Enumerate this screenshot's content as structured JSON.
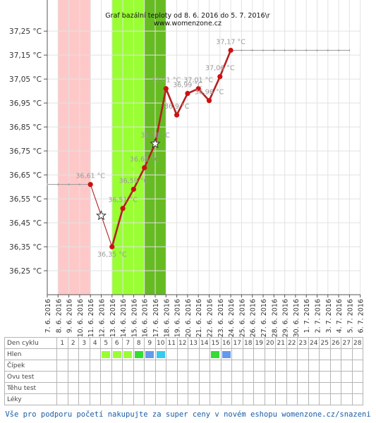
{
  "chart_data": {
    "type": "line",
    "title": "Graf bazální teploty od 8. 6. 2016 do 5. 7. 2016\\r",
    "subtitle": "www.womenzone.cz",
    "ylim": [
      36.15,
      37.38
    ],
    "y_ticks": [
      36.25,
      36.35,
      36.45,
      36.55,
      36.65,
      36.75,
      36.85,
      36.95,
      37.05,
      37.15,
      37.25
    ],
    "y_tick_labels": [
      "36,25 °C",
      "36,35 °C",
      "36,45 °C",
      "36,55 °C",
      "36,65 °C",
      "36,75 °C",
      "36,85 °C",
      "36,95 °C",
      "37,05 °C",
      "37,15 °C",
      "37,25 °C"
    ],
    "x_tick_labels": [
      "7. 6. 2016",
      "8. 6. 2016",
      "9. 6. 2016",
      "10. 6. 2016",
      "11. 6. 2016",
      "12. 6. 2016",
      "13. 6. 2016",
      "14. 6. 2016",
      "15. 6. 2016",
      "16. 6. 2016",
      "17. 6. 2016",
      "18. 6. 2016",
      "19. 6. 2016",
      "20. 6. 2016",
      "21. 6. 2016",
      "22. 6. 2016",
      "23. 6. 2016",
      "24. 6. 2016",
      "25. 6. 2016",
      "26. 6. 2016",
      "27. 6. 2016",
      "28. 6. 2016",
      "29. 6. 2016",
      "30. 6. 2016",
      "1. 7. 2016",
      "2. 7. 2016",
      "3. 7. 2016",
      "4. 7. 2016",
      "5. 7. 2016",
      "6. 7. 2016"
    ],
    "grid": true,
    "bands": [
      {
        "from_day": 1,
        "to_day": 4,
        "color": "#ffc8c8"
      },
      {
        "from_day": 6,
        "to_day": 9,
        "color": "#99ff33"
      },
      {
        "from_day": 9,
        "to_day": 11,
        "color": "#66bb22"
      }
    ],
    "colors": {
      "line": "#b22222",
      "marker": "#cc1111",
      "guide": "#999999",
      "label": "#999999"
    },
    "segments": [
      {
        "style": "thin",
        "days": [
          4,
          5,
          6
        ],
        "values": [
          36.61,
          36.48,
          36.35
        ]
      },
      {
        "style": "thick",
        "days": [
          6,
          7,
          8,
          9,
          10,
          11,
          12,
          13,
          14,
          15,
          16,
          17
        ],
        "values": [
          36.35,
          36.51,
          36.59,
          36.68,
          36.78,
          37.01,
          36.9,
          36.99,
          37.01,
          36.96,
          37.06,
          37.17
        ]
      }
    ],
    "points": [
      {
        "day": 4,
        "value": 36.61,
        "marker": "dot",
        "label": "36,61 °C"
      },
      {
        "day": 5,
        "value": 36.48,
        "marker": "star",
        "label": ""
      },
      {
        "day": 6,
        "value": 36.35,
        "marker": "dot",
        "label": "36,35 °C"
      },
      {
        "day": 7,
        "value": 36.51,
        "marker": "dot",
        "label": "36,51 °C"
      },
      {
        "day": 8,
        "value": 36.59,
        "marker": "dot",
        "label": "36,59 °C"
      },
      {
        "day": 9,
        "value": 36.68,
        "marker": "dot",
        "label": "36,68 °C"
      },
      {
        "day": 10,
        "value": 36.78,
        "marker": "star",
        "label": "36,78 °C"
      },
      {
        "day": 11,
        "value": 37.01,
        "marker": "dot",
        "label": "37,01 °C"
      },
      {
        "day": 12,
        "value": 36.9,
        "marker": "dot",
        "label": "36,9 °C"
      },
      {
        "day": 13,
        "value": 36.99,
        "marker": "dot",
        "label": "36,99 °C"
      },
      {
        "day": 14,
        "value": 37.01,
        "marker": "dot",
        "label": "37,01 °C"
      },
      {
        "day": 15,
        "value": 36.96,
        "marker": "dot",
        "label": "36,96 °C"
      },
      {
        "day": 16,
        "value": 37.06,
        "marker": "dot",
        "label": "37,06 °C"
      },
      {
        "day": 17,
        "value": 37.17,
        "marker": "dot",
        "label": "37,17 °C"
      }
    ],
    "guide_lines": [
      {
        "from_day": 0,
        "to_day": 4,
        "value": 36.61
      },
      {
        "from_day": 17,
        "to_day": 28,
        "value": 37.17
      }
    ]
  },
  "table": {
    "rows": [
      {
        "label": "Den cyklu",
        "type": "numbers"
      },
      {
        "label": "Hlen",
        "type": "colors"
      },
      {
        "label": "Čípek",
        "type": "empty"
      },
      {
        "label": "Ovu test",
        "type": "empty"
      },
      {
        "label": "Těhu test",
        "type": "empty"
      },
      {
        "label": "Léky",
        "type": "empty"
      }
    ],
    "days": [
      "1",
      "2",
      "3",
      "4",
      "5",
      "6",
      "7",
      "8",
      "9",
      "10",
      "11",
      "12",
      "13",
      "14",
      "15",
      "16",
      "17",
      "18",
      "19",
      "20",
      "21",
      "22",
      "23",
      "24",
      "25",
      "26",
      "27",
      "28"
    ],
    "hlen": {
      "5": "#99ff33",
      "6": "#99ff33",
      "7": "#99ff33",
      "8": "#33dd33",
      "9": "#6699ee",
      "10": "#33ccee",
      "15": "#33dd33",
      "16": "#6699ee"
    }
  },
  "footer": {
    "promo": "Vše pro podporu početí nakupujte za super ceny v novém eshopu womenzone.cz/snazeni"
  }
}
